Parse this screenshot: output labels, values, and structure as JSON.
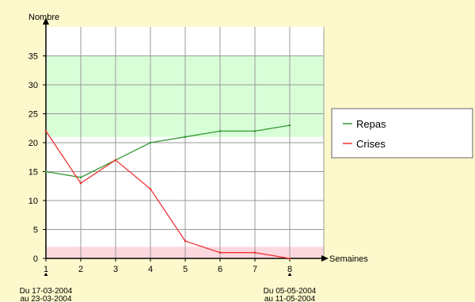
{
  "chart_data": {
    "type": "line",
    "title": "",
    "ylabel": "Nombre",
    "xlabel": "Semaines",
    "x": [
      1,
      2,
      3,
      4,
      5,
      6,
      7,
      8
    ],
    "xticks": [
      "1",
      "2",
      "3",
      "4",
      "5",
      "6",
      "7",
      "8"
    ],
    "yticks": [
      "0",
      "5",
      "10",
      "15",
      "20",
      "25",
      "30",
      "35"
    ],
    "xlim": [
      1,
      9
    ],
    "ylim": [
      0,
      40
    ],
    "grid": true,
    "legend_position": "right",
    "series": [
      {
        "name": "Repas",
        "color": "#339933",
        "values": [
          15,
          14,
          17,
          20,
          21,
          22,
          22,
          23
        ]
      },
      {
        "name": "Crises",
        "color": "#EE3333",
        "values": [
          22,
          13,
          17,
          12,
          3,
          1,
          1,
          0
        ]
      }
    ],
    "bands": [
      {
        "from": 21,
        "to": 35,
        "color": "#D8FED8"
      },
      {
        "from": 0,
        "to": 2,
        "color": "#FED8DF"
      }
    ],
    "annotations": [
      {
        "x": 1,
        "lines": [
          "Du 17-03-2004",
          "au 23-03-2004"
        ]
      },
      {
        "x": 8,
        "lines": [
          "Du 05-05-2004",
          "au 11-05-2004"
        ]
      }
    ]
  },
  "colors": {
    "page_background": "#FEF9CC",
    "plot_background": "#FFFFFF",
    "grid": "#999999",
    "axis": "#000000"
  }
}
